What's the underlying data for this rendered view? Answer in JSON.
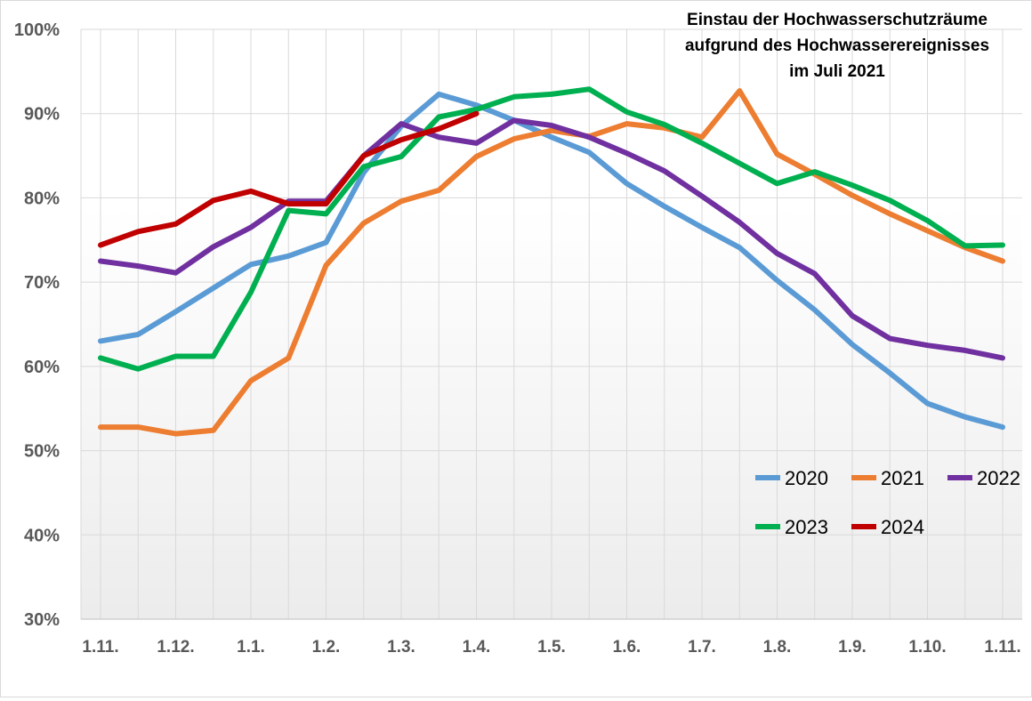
{
  "chart_data": {
    "type": "line",
    "title": [
      "Einstau der Hochwasserschutzräume",
      "aufgrund des Hochwasserereignisses",
      "im Juli 2021"
    ],
    "xlabel": "",
    "ylabel": "",
    "ylim": [
      30,
      100
    ],
    "y_ticks": [
      30,
      40,
      50,
      60,
      70,
      80,
      90,
      100
    ],
    "y_tick_labels": [
      "30%",
      "40%",
      "50%",
      "60%",
      "70%",
      "80%",
      "90%",
      "100%"
    ],
    "x_tick_labels": [
      "1.11.",
      "1.12.",
      "1.1.",
      "1.2.",
      "1.3.",
      "1.4.",
      "1.5.",
      "1.6.",
      "1.7.",
      "1.8.",
      "1.9.",
      "1.10.",
      "1.11."
    ],
    "grid": true,
    "legend_position": "bottom-right",
    "series": [
      {
        "name": "2020",
        "color": "#5b9bd5",
        "values": [
          63.0,
          63.8,
          66.5,
          69.3,
          72.1,
          73.1,
          74.7,
          83.0,
          88.5,
          92.3,
          91.0,
          89.2,
          87.2,
          85.4,
          81.7,
          79.0,
          76.5,
          74.1,
          70.2,
          66.7,
          62.6,
          59.2,
          55.6,
          54.0,
          52.8
        ]
      },
      {
        "name": "2021",
        "color": "#ed7d31",
        "values": [
          52.8,
          52.8,
          52.0,
          52.4,
          58.3,
          61.0,
          72.0,
          77.0,
          79.6,
          80.9,
          84.9,
          87.0,
          88.0,
          87.3,
          88.8,
          88.3,
          87.2,
          92.7,
          85.2,
          82.8,
          80.3,
          78.1,
          76.1,
          74.1,
          72.5
        ]
      },
      {
        "name": "2022",
        "color": "#7030a0",
        "values": [
          72.5,
          71.9,
          71.1,
          74.2,
          76.5,
          79.6,
          79.6,
          85.0,
          88.8,
          87.2,
          86.5,
          89.2,
          88.6,
          87.2,
          85.3,
          83.2,
          80.2,
          77.1,
          73.4,
          71.0,
          66.0,
          63.3,
          62.5,
          61.9,
          61.0
        ]
      },
      {
        "name": "2023",
        "color": "#00b050",
        "values": [
          61.0,
          59.7,
          61.2,
          61.2,
          68.8,
          78.5,
          78.1,
          83.7,
          84.9,
          89.6,
          90.5,
          92.0,
          92.3,
          92.9,
          90.2,
          88.7,
          86.5,
          84.1,
          81.7,
          83.1,
          81.5,
          79.7,
          77.3,
          74.3,
          74.4
        ]
      },
      {
        "name": "2024",
        "color": "#c00000",
        "values": [
          74.4,
          76.0,
          76.9,
          79.7,
          80.8,
          79.3,
          79.3,
          85.0,
          86.9,
          88.2,
          90.0
        ]
      }
    ]
  }
}
